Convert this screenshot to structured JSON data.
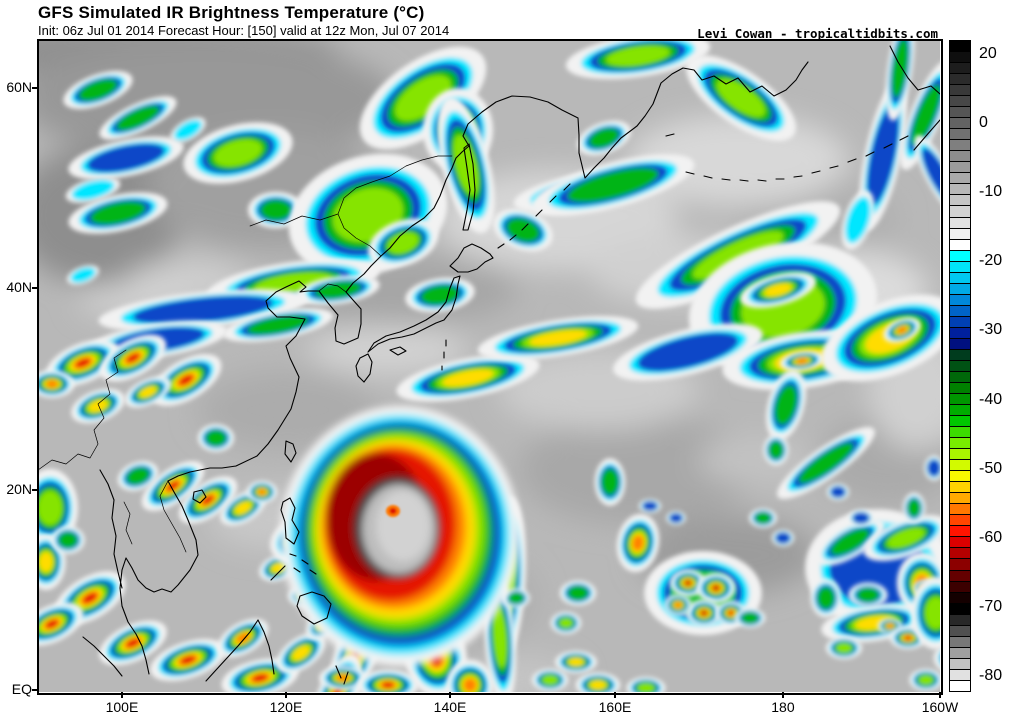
{
  "header": {
    "title": "GFS Simulated IR Brightness Temperature (°C)",
    "init_line": "Init: 06z Jul 01 2014 Forecast Hour: [150] valid at 12z Mon, Jul 07 2014",
    "credit": "Levi Cowan - tropicaltidbits.com"
  },
  "axes": {
    "longitude": {
      "labels": [
        "100E",
        "120E",
        "140E",
        "160E",
        "180",
        "160W"
      ],
      "fractions": [
        0.0931,
        0.2749,
        0.4568,
        0.6397,
        0.8259,
        1.0
      ]
    },
    "latitude": {
      "labels": [
        "60N",
        "40N",
        "20N",
        "EQ"
      ],
      "fractions": [
        0.0736,
        0.3804,
        0.6902,
        0.9969
      ]
    }
  },
  "colorbar": {
    "unit": "°C",
    "tick_labels": [
      "20",
      "0",
      "-10",
      "-20",
      "-30",
      "-40",
      "-50",
      "-60",
      "-70",
      "-80"
    ],
    "segment_colors": [
      "#000000",
      "#0f0f0f",
      "#1d1d1d",
      "#2b2b2b",
      "#393939",
      "#474747",
      "#555555",
      "#636363",
      "#717171",
      "#7f7f7f",
      "#8d8d8d",
      "#9b9b9b",
      "#a9a9a9",
      "#b7b7b7",
      "#c5c5c5",
      "#d3d3d3",
      "#e1e1e1",
      "#f0f0f0",
      "#ffffff",
      "#00ffff",
      "#00e4f8",
      "#00c8f0",
      "#00aae6",
      "#0088da",
      "#0064c8",
      "#0040b4",
      "#00209c",
      "#001080",
      "#003c1e",
      "#005214",
      "#00680a",
      "#008000",
      "#009600",
      "#00ac00",
      "#00c800",
      "#3cdc00",
      "#78ec00",
      "#aaf600",
      "#d2fa00",
      "#f8f800",
      "#ffd200",
      "#ffaa00",
      "#ff7800",
      "#ff4600",
      "#ff1400",
      "#dc0000",
      "#b40000",
      "#8c0000",
      "#640000",
      "#3c0000",
      "#140000",
      "#000000",
      "#282828",
      "#505050",
      "#787878",
      "#a0a0a0",
      "#c3c3c3",
      "#e1e1e1",
      "#ffffff"
    ]
  },
  "chart_data": {
    "type": "heatmap",
    "title": "GFS Simulated IR Brightness Temperature (°C)",
    "units": "°C",
    "value_range": [
      -80,
      20
    ],
    "region": {
      "lon_min": "90E",
      "lon_max": "160W",
      "lat_min": "EQ",
      "lat_max": "65N"
    },
    "colorbar_ticks": [
      20,
      0,
      -10,
      -20,
      -30,
      -40,
      -50,
      -60,
      -70,
      -80
    ],
    "notable_features": [
      "Intense typhoon with warm gray eye region and cold red eyewall ring near 134E 16N",
      "Spiral rainband trailing southwest from the typhoon toward the Philippines",
      "Red-core convective clusters over Southeast Asia, southwest China and the Maritime Continent",
      "Cluster of very cold red-top convection near 170E 10N",
      "Large cold frontal cloud mass near 40N between 175E and 170W with yellow/orange cores",
      "Elongated green cloud bands southeast of Japan near 32N",
      "Green/cyan cloud streaks across Siberia, Sea of Okhotsk, Kamchatka and the Bering Sea",
      "Scattered tropical convection with orange cores near 165W 8N"
    ]
  }
}
